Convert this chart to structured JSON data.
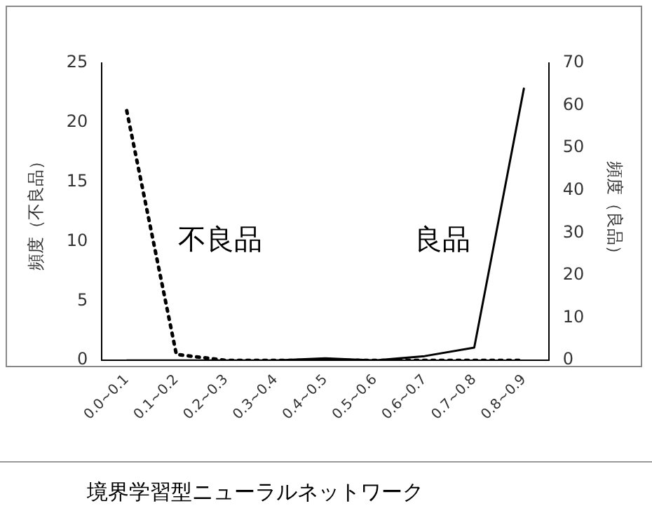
{
  "chart_data": {
    "type": "line",
    "ylabel": "頻度（不良品）",
    "y2label": "頻度（良品）",
    "categories": [
      "0.0~0.1",
      "0.1~0.2",
      "0.2~0.3",
      "0.3~0.4",
      "0.4~0.5",
      "0.5~0.6",
      "0.6~0.7",
      "0.7~0.8",
      "0.8~0.9"
    ],
    "series": [
      {
        "name": "不良品",
        "color": "#000000",
        "line_style": "dotted",
        "values": [
          21,
          0.5,
          0,
          0,
          0,
          0,
          0,
          0,
          0
        ]
      },
      {
        "name": "良品",
        "color": "#000000",
        "line_style": "solid",
        "axis": "y2",
        "values": [
          0,
          0,
          0,
          0,
          0.5,
          0,
          1,
          3,
          64
        ]
      }
    ],
    "ylim": [
      0,
      25
    ],
    "yticks": [
      0,
      5,
      10,
      15,
      20,
      25
    ],
    "y2lim": [
      0,
      70
    ],
    "y2ticks": [
      0,
      10,
      20,
      30,
      40,
      50,
      60,
      70
    ],
    "grid": false,
    "legend": false,
    "marker": "none",
    "annotations": [
      "境界学習型ニューラルネットワーク"
    ]
  }
}
